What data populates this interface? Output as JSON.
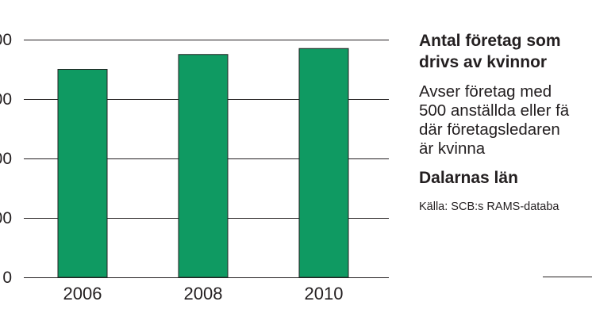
{
  "chart_data": {
    "type": "bar",
    "categories": [
      "2006",
      "2008",
      "2010"
    ],
    "values": [
      3500,
      3750,
      3850
    ],
    "ylim": [
      0,
      4000
    ],
    "y_ticks": [
      0,
      1000,
      2000,
      3000,
      4000
    ],
    "y_tick_labels_visible": [
      "0",
      "00",
      "00",
      "00",
      "00"
    ],
    "grid": true,
    "bar_color": "#0f9a62",
    "title": "Antal företag som drivs av kvinnor"
  },
  "sidebar": {
    "title_line1": "Antal företag som",
    "title_line2": "drivs av kvinnor",
    "desc_line1": "Avser företag med",
    "desc_line2": "500 anställda eller fä",
    "desc_line3": "där företagsledaren",
    "desc_line4": "är kvinna",
    "region": "Dalarnas län",
    "source": "Källa: SCB:s RAMS-databa"
  }
}
